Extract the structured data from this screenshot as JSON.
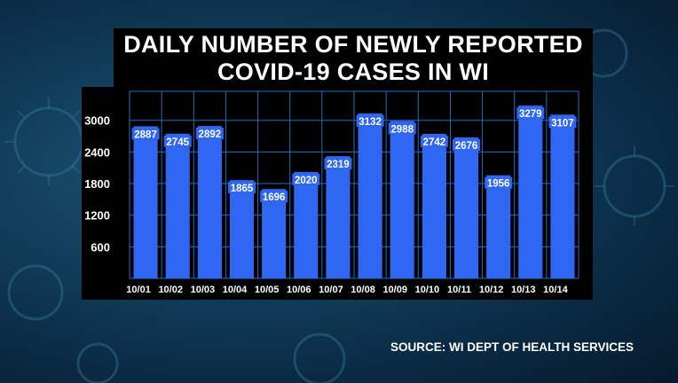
{
  "title_lines": [
    "DAILY NUMBER OF NEWLY REPORTED",
    "COVID-19 CASES IN WI"
  ],
  "source": "SOURCE: WI DEPT OF HEALTH SERVICES",
  "colors": {
    "bar": "#2f66f2",
    "grid": "#1e6fbf",
    "panel": "#000000",
    "text": "#ffffff"
  },
  "chart_data": {
    "type": "bar",
    "title": "DAILY NUMBER OF NEWLY REPORTED COVID-19 CASES IN WI",
    "categories": [
      "10/01",
      "10/02",
      "10/03",
      "10/04",
      "10/05",
      "10/06",
      "10/07",
      "10/08",
      "10/09",
      "10/10",
      "10/11",
      "10/12",
      "10/13",
      "10/14"
    ],
    "values": [
      2887,
      2745,
      2892,
      1865,
      1696,
      2020,
      2319,
      3132,
      2988,
      2742,
      2676,
      1956,
      3279,
      3107
    ],
    "yticks": [
      600,
      1200,
      1800,
      2400,
      3000
    ],
    "ylim": [
      0,
      3550
    ],
    "grid": true,
    "data_labels": true
  }
}
